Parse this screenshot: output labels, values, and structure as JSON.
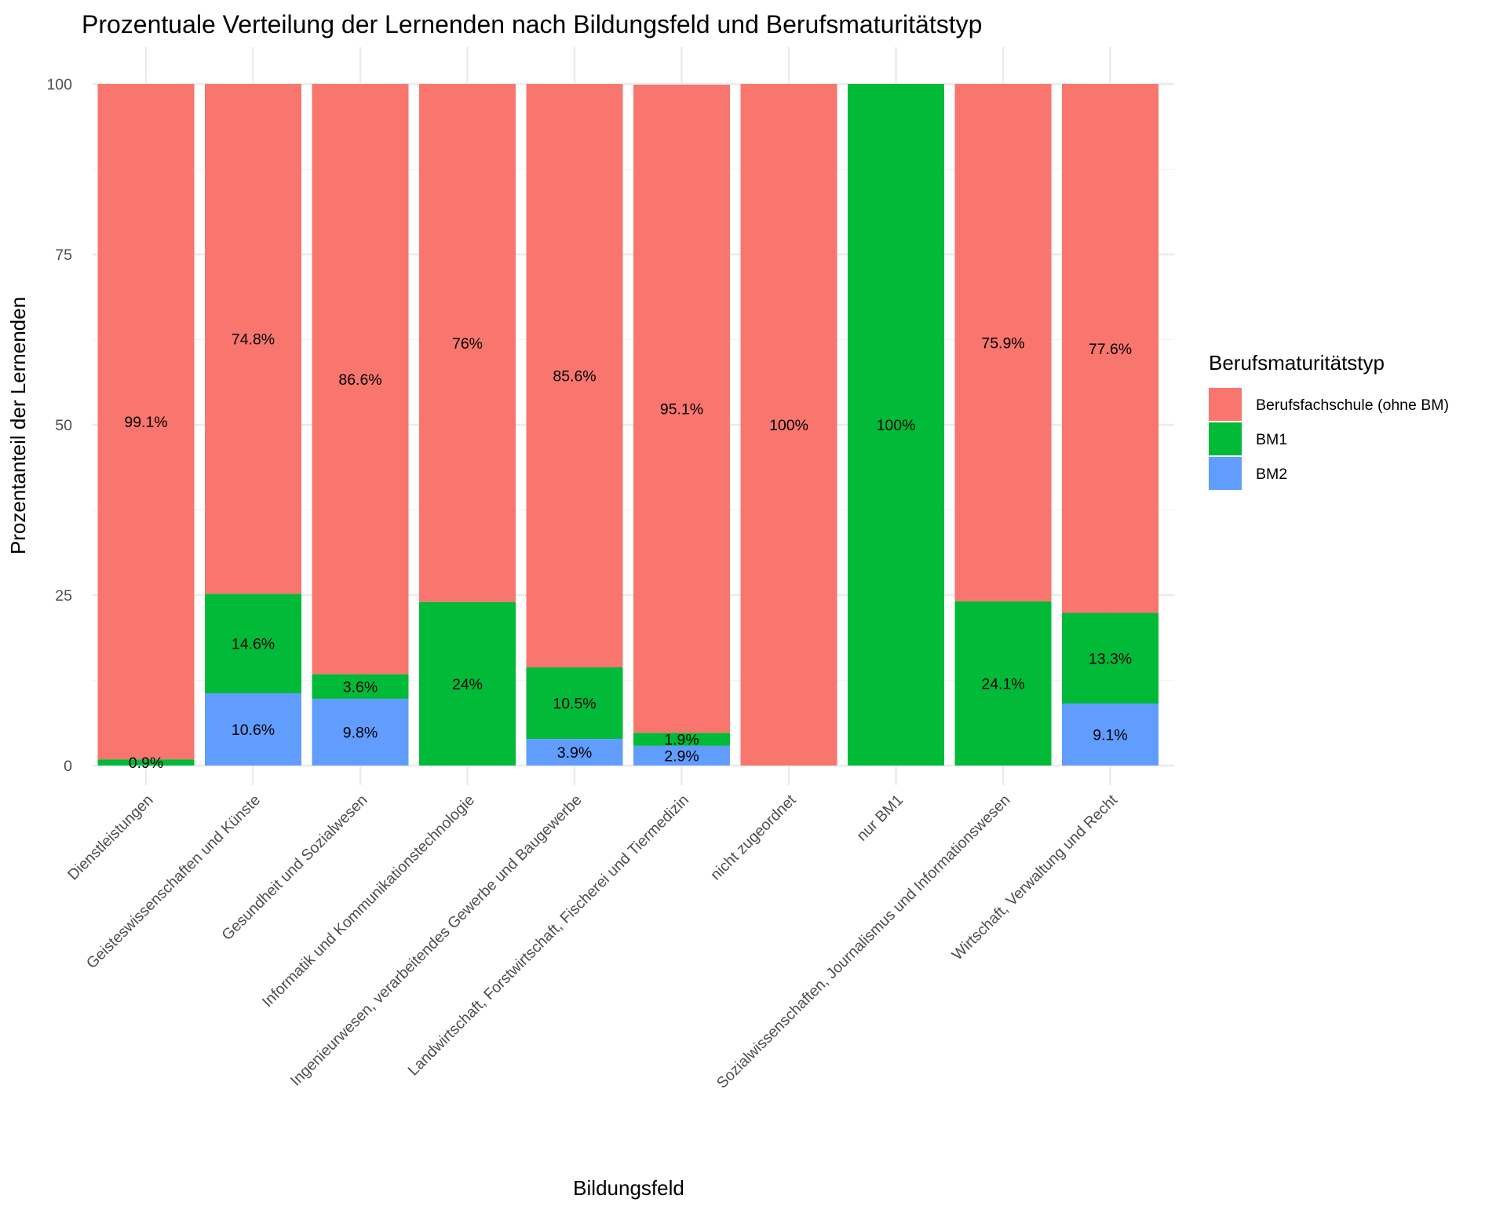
{
  "chart_data": {
    "type": "bar",
    "stacked": true,
    "title": "Prozentuale Verteilung der Lernenden nach Bildungsfeld und Berufsmaturitätstyp",
    "xlabel": "Bildungsfeld",
    "ylabel": "Prozentanteil der Lernenden",
    "ylim": [
      0,
      100
    ],
    "y_ticks": [
      0,
      25,
      50,
      75,
      100
    ],
    "grid": true,
    "legend_title": "Berufsmaturitätstyp",
    "legend_position": "right",
    "categories": [
      "Dienstleistungen",
      "Geisteswissenschaften und Künste",
      "Gesundheit und Sozialwesen",
      "Informatik und Kommunikationstechnologie",
      "Ingenieurwesen, verarbeitendes Gewerbe und Baugewerbe",
      "Landwirtschaft, Forstwirtschaft, Fischerei und Tiermedizin",
      "nicht zugeordnet",
      "nur BM1",
      "Sozialwissenschaften, Journalismus und Informationswesen",
      "Wirtschaft, Verwaltung und Recht"
    ],
    "series": [
      {
        "name": "Berufsfachschule (ohne BM)",
        "color": "#F8766D",
        "values": [
          99.1,
          74.8,
          86.6,
          76,
          85.6,
          95.1,
          100,
          0,
          75.9,
          77.6
        ],
        "labels": [
          "99.1%",
          "74.8%",
          "86.6%",
          "76%",
          "85.6%",
          "95.1%",
          "100%",
          "",
          "75.9%",
          "77.6%"
        ]
      },
      {
        "name": "BM1",
        "color": "#00BA38",
        "values": [
          0.9,
          14.6,
          3.6,
          24,
          10.5,
          1.9,
          0,
          100,
          24.1,
          13.3
        ],
        "labels": [
          "0.9%",
          "14.6%",
          "3.6%",
          "24%",
          "10.5%",
          "1.9%",
          "",
          "100%",
          "24.1%",
          "13.3%"
        ]
      },
      {
        "name": "BM2",
        "color": "#619CFF",
        "values": [
          0,
          10.6,
          9.8,
          0,
          3.9,
          2.9,
          0,
          0,
          0,
          9.1
        ],
        "labels": [
          "",
          "10.6%",
          "9.8%",
          "",
          "3.9%",
          "2.9%",
          "",
          "",
          "",
          "9.1%"
        ]
      }
    ]
  }
}
